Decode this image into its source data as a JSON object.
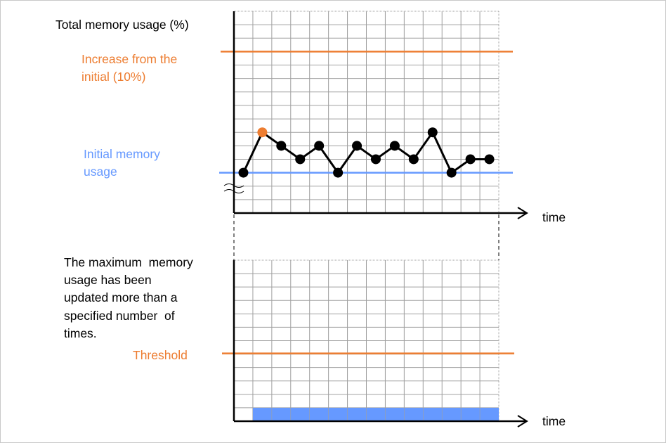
{
  "top_chart": {
    "ylabel": "Total memory usage (%)",
    "xlabel": "time",
    "increase_label_line1": "Increase from the",
    "increase_label_line2": "initial (10%)",
    "initial_label_line1": "Initial memory",
    "initial_label_line2": "usage"
  },
  "bottom_chart": {
    "desc_lines": [
      "The maximum  memory",
      "usage has been",
      "updated more than a",
      "specified number  of",
      "times."
    ],
    "threshold_label": "Threshold",
    "xlabel": "time"
  },
  "colors": {
    "orange": "#ED7D31",
    "blue": "#6699FF",
    "grid": "#A0A0A0",
    "axis": "#000000"
  },
  "chart_data": [
    {
      "type": "line",
      "ylabel": "Total memory usage (%)",
      "xlabel": "time",
      "axis_break": true,
      "grid": true,
      "x": [
        1,
        2,
        3,
        4,
        5,
        6,
        7,
        8,
        9,
        10,
        11,
        12,
        13,
        14
      ],
      "values": [
        3,
        6,
        5,
        4,
        5,
        3,
        5,
        4,
        5,
        4,
        6,
        3,
        4,
        4
      ],
      "highlighted_point_index": 1,
      "reference_lines": [
        {
          "label": "Increase from the initial (10%)",
          "value": 12,
          "color": "#ED7D31"
        },
        {
          "label": "Initial memory usage",
          "value": 3,
          "color": "#6699FF"
        }
      ],
      "ylim": [
        0,
        15
      ],
      "xlim": [
        0,
        14
      ]
    },
    {
      "type": "bar",
      "xlabel": "time",
      "grid": true,
      "bar_start": 1,
      "bar_end": 14,
      "bar_value": 1,
      "reference_lines": [
        {
          "label": "Threshold",
          "value": 5,
          "color": "#ED7D31"
        }
      ],
      "ylim": [
        0,
        12
      ],
      "xlim": [
        0,
        14
      ]
    }
  ]
}
